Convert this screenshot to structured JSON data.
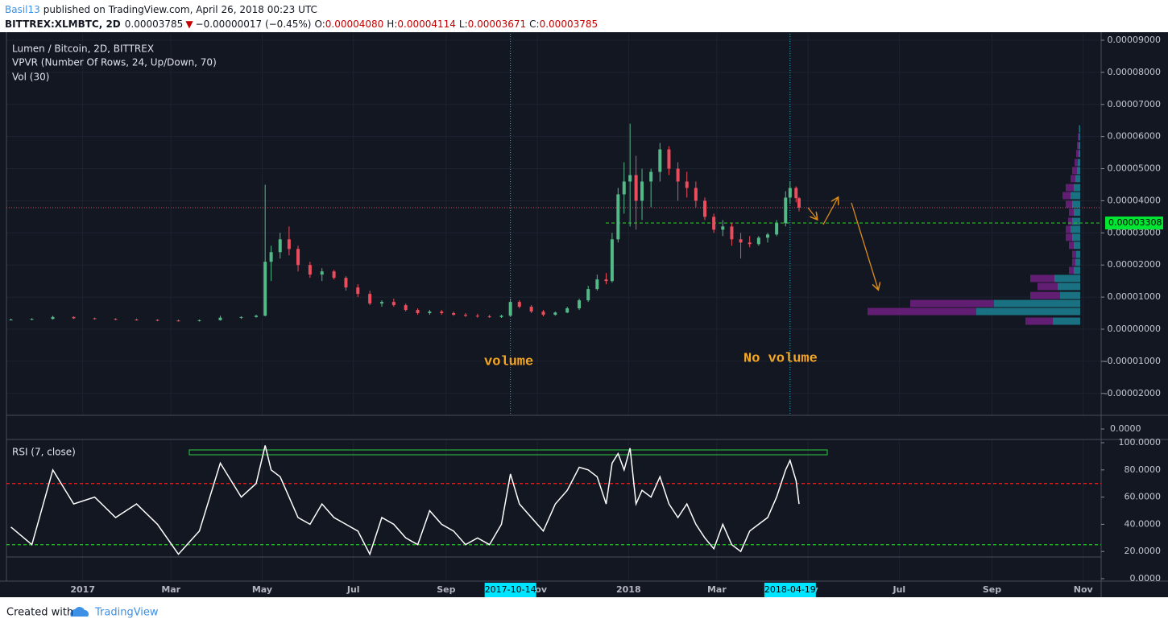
{
  "header": {
    "author": "Basil13",
    "published": "published on TradingView.com, April 26, 2018 00:23 UTC",
    "symbol": "BITTREX:XLMBTC, 2D",
    "last": "0.00003785",
    "change_arrow": "▼",
    "change": "−0.00000017 (−0.45%)",
    "ohlc": [
      {
        "label": "O:",
        "value": "0.00004080"
      },
      {
        "label": "H:",
        "value": "0.00004114"
      },
      {
        "label": "L:",
        "value": "0.00003671"
      },
      {
        "label": "C:",
        "value": "0.00003785"
      }
    ]
  },
  "chart_data": {
    "type": "candlestick",
    "title": "Lumen / Bitcoin, 2D, BITTREX",
    "up_color": "#53b987",
    "down_color": "#eb4d5c",
    "x": [
      "2016-11-14",
      "2016-11-28",
      "2016-12-12",
      "2016-12-26",
      "2017-01-09",
      "2017-01-23",
      "2017-02-06",
      "2017-02-20",
      "2017-03-06",
      "2017-03-20",
      "2017-04-03",
      "2017-04-17",
      "2017-04-27",
      "2017-05-03",
      "2017-05-07",
      "2017-05-13",
      "2017-05-19",
      "2017-05-25",
      "2017-06-02",
      "2017-06-10",
      "2017-06-18",
      "2017-06-26",
      "2017-07-04",
      "2017-07-12",
      "2017-07-20",
      "2017-07-28",
      "2017-08-05",
      "2017-08-13",
      "2017-08-21",
      "2017-08-29",
      "2017-09-06",
      "2017-09-14",
      "2017-09-22",
      "2017-09-30",
      "2017-10-08",
      "2017-10-14",
      "2017-10-20",
      "2017-10-28",
      "2017-11-05",
      "2017-11-13",
      "2017-11-21",
      "2017-11-29",
      "2017-12-05",
      "2017-12-11",
      "2017-12-17",
      "2017-12-21",
      "2017-12-25",
      "2017-12-29",
      "2018-01-02",
      "2018-01-06",
      "2018-01-10",
      "2018-01-16",
      "2018-01-22",
      "2018-01-28",
      "2018-02-03",
      "2018-02-09",
      "2018-02-15",
      "2018-02-21",
      "2018-02-27",
      "2018-03-05",
      "2018-03-11",
      "2018-03-17",
      "2018-03-23",
      "2018-03-29",
      "2018-04-04",
      "2018-04-10",
      "2018-04-16",
      "2018-04-19",
      "2018-04-23",
      "2018-04-25"
    ],
    "open": [
      3e-06,
      3e-06,
      3.2e-06,
      3.8e-06,
      3.4e-06,
      3.2e-06,
      3e-06,
      2.9e-06,
      2.7e-06,
      2.6e-06,
      2.8e-06,
      3.6e-06,
      3.8e-06,
      4.2e-06,
      2.1e-05,
      2.4e-05,
      2.8e-05,
      2.5e-05,
      2e-05,
      1.7e-05,
      1.8e-05,
      1.6e-05,
      1.3e-05,
      1.1e-05,
      8e-06,
      8.5e-06,
      7.5e-06,
      6e-06,
      5e-06,
      5.5e-06,
      5e-06,
      4.5e-06,
      4.2e-06,
      4e-06,
      3.8e-06,
      4.2e-06,
      8.5e-06,
      7e-06,
      5.5e-06,
      4.5e-06,
      5.2e-06,
      6.5e-06,
      9e-06,
      1.25e-05,
      1.55e-05,
      1.5e-05,
      2.8e-05,
      4.2e-05,
      4.6e-05,
      4.8e-05,
      4e-05,
      4.6e-05,
      4.9e-05,
      5.6e-05,
      5e-05,
      4.6e-05,
      4.4e-05,
      4e-05,
      3.5e-05,
      3.1e-05,
      3.2e-05,
      2.8e-05,
      2.7e-05,
      2.65e-05,
      2.85e-05,
      2.95e-05,
      3.3e-05,
      4.1e-05,
      4.4e-05,
      4.08e-05
    ],
    "high": [
      3.3e-06,
      3.4e-06,
      4.2e-06,
      4e-06,
      3.6e-06,
      3.4e-06,
      3.3e-06,
      3.1e-06,
      3e-06,
      3e-06,
      4.2e-06,
      4e-06,
      4.5e-06,
      4.5e-05,
      2.6e-05,
      3e-05,
      3.2e-05,
      2.6e-05,
      2.1e-05,
      1.9e-05,
      1.85e-05,
      1.65e-05,
      1.4e-05,
      1.2e-05,
      9e-06,
      9.5e-06,
      8e-06,
      6.5e-06,
      6e-06,
      6e-06,
      5.5e-06,
      5e-06,
      4.8e-06,
      4.5e-06,
      4.5e-06,
      9.5e-06,
      9e-06,
      7.5e-06,
      6e-06,
      5.5e-06,
      7e-06,
      9.5e-06,
      1.35e-05,
      1.7e-05,
      1.75e-05,
      3e-05,
      4.4e-05,
      5.2e-05,
      6.4e-05,
      5.4e-05,
      5e-05,
      5e-05,
      5.8e-05,
      5.7e-05,
      5.2e-05,
      4.9e-05,
      4.6e-05,
      4.1e-05,
      3.6e-05,
      3.4e-05,
      3.3e-05,
      3e-05,
      2.9e-05,
      2.9e-05,
      3e-05,
      3.4e-05,
      4.3e-05,
      4.6e-05,
      4.45e-05,
      4.114e-05
    ],
    "low": [
      2.8e-06,
      2.8e-06,
      3e-06,
      3.2e-06,
      3e-06,
      2.8e-06,
      2.7e-06,
      2.5e-06,
      2.4e-06,
      2.4e-06,
      2.7e-06,
      3.2e-06,
      3.6e-06,
      4e-06,
      1.5e-05,
      2.2e-05,
      2.3e-05,
      1.8e-05,
      1.6e-05,
      1.5e-05,
      1.55e-05,
      1.2e-05,
      1e-05,
      7.5e-06,
      7e-06,
      7e-06,
      5.5e-06,
      4.5e-06,
      4.5e-06,
      4.5e-06,
      4.2e-06,
      3.8e-06,
      3.6e-06,
      3.5e-06,
      3.5e-06,
      4e-06,
      6.5e-06,
      5e-06,
      4e-06,
      4.2e-06,
      5e-06,
      6e-06,
      8.5e-06,
      1.2e-05,
      1.4e-05,
      1.45e-05,
      2.7e-05,
      3.6e-05,
      3.2e-05,
      3.1e-05,
      3.4e-05,
      3.8e-05,
      4.6e-05,
      4.8e-05,
      4e-05,
      4.1e-05,
      3.8e-05,
      3.4e-05,
      3e-05,
      2.9e-05,
      2.6e-05,
      2.2e-05,
      2.55e-05,
      2.6e-05,
      2.7e-05,
      2.9e-05,
      3.2e-05,
      3.9e-05,
      3.95e-05,
      3.671e-05
    ],
    "close": [
      3e-06,
      3.2e-06,
      3.8e-06,
      3.4e-06,
      3.2e-06,
      3e-06,
      2.9e-06,
      2.7e-06,
      2.6e-06,
      2.8e-06,
      3.6e-06,
      3.8e-06,
      4.2e-06,
      2.1e-05,
      2.4e-05,
      2.8e-05,
      2.5e-05,
      2e-05,
      1.7e-05,
      1.8e-05,
      1.6e-05,
      1.3e-05,
      1.1e-05,
      8e-06,
      8.5e-06,
      7.5e-06,
      6e-06,
      5e-06,
      5.5e-06,
      5e-06,
      4.5e-06,
      4.2e-06,
      4e-06,
      3.8e-06,
      4.2e-06,
      8.5e-06,
      7e-06,
      5.5e-06,
      4.5e-06,
      5.2e-06,
      6.5e-06,
      9e-06,
      1.25e-05,
      1.55e-05,
      1.5e-05,
      2.8e-05,
      4.2e-05,
      4.6e-05,
      4.8e-05,
      4e-05,
      4.6e-05,
      4.9e-05,
      5.6e-05,
      5e-05,
      4.6e-05,
      4.4e-05,
      4e-05,
      3.5e-05,
      3.1e-05,
      3.2e-05,
      2.8e-05,
      2.7e-05,
      2.65e-05,
      2.85e-05,
      2.95e-05,
      3.3e-05,
      4.1e-05,
      4.4e-05,
      4.08e-05,
      3.785e-05
    ],
    "xlim": [
      "2016-11-11",
      "2018-11-13"
    ],
    "xticks": [
      {
        "value": "2017-01-01",
        "label": "2017"
      },
      {
        "value": "2017-03-01",
        "label": "Mar"
      },
      {
        "value": "2017-05-01",
        "label": "May"
      },
      {
        "value": "2017-07-01",
        "label": "Jul"
      },
      {
        "value": "2017-09-01",
        "label": "Sep"
      },
      {
        "value": "2017-11-01",
        "label": "Nov"
      },
      {
        "value": "2018-01-01",
        "label": "2018"
      },
      {
        "value": "2018-03-01",
        "label": "Mar"
      },
      {
        "value": "2018-05-01",
        "label": "May"
      },
      {
        "value": "2018-07-01",
        "label": "Jul"
      },
      {
        "value": "2018-09-01",
        "label": "Sep"
      },
      {
        "value": "2018-11-01",
        "label": "Nov"
      }
    ],
    "ylim": [
      -2.682e-05,
      9.2e-05
    ],
    "yticks": [
      {
        "value": 9e-05,
        "label": "0.00009000"
      },
      {
        "value": 8e-05,
        "label": "0.00008000"
      },
      {
        "value": 7e-05,
        "label": "0.00007000"
      },
      {
        "value": 6e-05,
        "label": "0.00006000"
      },
      {
        "value": 5e-05,
        "label": "0.00005000"
      },
      {
        "value": 4e-05,
        "label": "0.00004000"
      },
      {
        "value": 3e-05,
        "label": "0.00003000"
      },
      {
        "value": 2e-05,
        "label": "0.00002000"
      },
      {
        "value": 1e-05,
        "label": "0.00001000"
      },
      {
        "value": 0,
        "label": "0.00000000"
      },
      {
        "value": -1e-05,
        "label": "-0.00001000"
      },
      {
        "value": -2e-05,
        "label": "-0.00002000"
      }
    ],
    "grid": true,
    "last_price_color": "#c2505e",
    "level": {
      "value": 3.308e-05,
      "label": "0.00003308",
      "color": "#27c024"
    },
    "highlights": [
      "2017-10-14",
      "2018-04-19"
    ],
    "annotations": [
      "volume",
      "No volume"
    ],
    "vpvr": {
      "name": "VPVR (Number Of Rows, 24, Up/Down, 70)",
      "prices": [
        2.5e-06,
        5.5e-06,
        8e-06,
        1.05e-05,
        1.33e-05,
        1.58e-05,
        1.83e-05,
        2.08e-05,
        2.33e-05,
        2.61e-05,
        2.86e-05,
        3.11e-05,
        3.36e-05,
        3.64e-05,
        3.89e-05,
        4.16e-05,
        4.41e-05,
        4.69e-05,
        4.94e-05,
        5.19e-05,
        5.47e-05,
        5.72e-05,
        5.99e-05,
        6.24e-05
      ],
      "up": [
        34,
        129,
        107,
        25,
        28,
        32,
        8,
        6,
        5,
        8,
        10,
        12,
        10,
        8,
        10,
        12,
        8,
        6,
        4,
        3,
        2,
        2,
        1,
        1
      ],
      "down": [
        34,
        135,
        104,
        37,
        25,
        30,
        6,
        4,
        5,
        6,
        8,
        6,
        5,
        6,
        8,
        10,
        10,
        6,
        6,
        4,
        3,
        2,
        2,
        1
      ],
      "up_color": "#1b7b8c",
      "down_color": "#6b1f7b"
    },
    "volume": {
      "name": "Vol (30)",
      "yticks": [
        {
          "value": 0,
          "label": "0.0000"
        }
      ]
    },
    "rsi": {
      "name": "RSI (7, close)",
      "color": "#ffffff",
      "values": [
        38,
        25,
        80,
        55,
        60,
        45,
        55,
        40,
        18,
        35,
        85,
        60,
        70,
        98,
        80,
        75,
        60,
        45,
        40,
        55,
        45,
        40,
        35,
        18,
        45,
        40,
        30,
        25,
        50,
        40,
        35,
        25,
        30,
        25,
        40,
        77,
        55,
        45,
        35,
        55,
        65,
        82,
        80,
        75,
        55,
        85,
        92,
        80,
        96,
        55,
        65,
        60,
        75,
        55,
        45,
        55,
        40,
        30,
        22,
        40,
        25,
        20,
        35,
        40,
        45,
        60,
        80,
        87,
        72,
        55
      ],
      "ylim": [
        -1.8,
        102.4
      ],
      "yticks": [
        {
          "value": 100,
          "label": "100.0000"
        },
        {
          "value": 80,
          "label": "80.0000"
        },
        {
          "value": 60,
          "label": "60.0000"
        },
        {
          "value": 40,
          "label": "40.0000"
        },
        {
          "value": 20,
          "label": "20.0000"
        },
        {
          "value": 0,
          "label": "0.0000"
        }
      ],
      "levels": [
        {
          "value": 70,
          "color": "#ff1a1a"
        },
        {
          "value": 25,
          "color": "#22c322"
        }
      ]
    }
  },
  "footer": {
    "created": "Created with",
    "brand": "TradingView"
  }
}
